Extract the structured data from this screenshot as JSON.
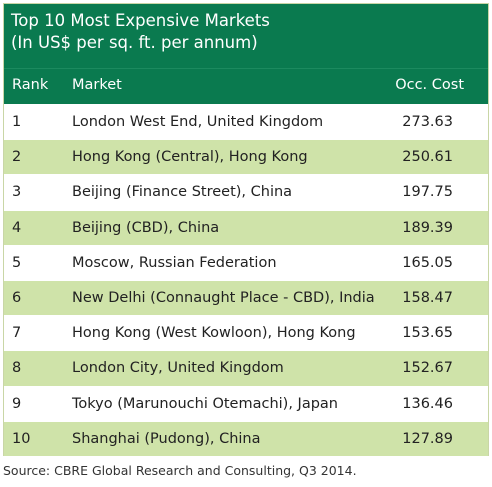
{
  "chart_data": {
    "type": "table",
    "title": "Top 10 Most Expensive Markets",
    "subtitle": "(In US$ per sq. ft. per annum)",
    "columns": [
      "Rank",
      "Market",
      "Occ. Cost"
    ],
    "rows": [
      {
        "rank": "1",
        "market": "London West End, United Kingdom",
        "cost": "273.63"
      },
      {
        "rank": "2",
        "market": "Hong Kong (Central), Hong Kong",
        "cost": "250.61"
      },
      {
        "rank": "3",
        "market": "Beijing (Finance Street), China",
        "cost": "197.75"
      },
      {
        "rank": "4",
        "market": "Beijing (CBD), China",
        "cost": "189.39"
      },
      {
        "rank": "5",
        "market": "Moscow, Russian Federation",
        "cost": "165.05"
      },
      {
        "rank": "6",
        "market": "New Delhi (Connaught Place - CBD), India",
        "cost": "158.47"
      },
      {
        "rank": "7",
        "market": "Hong Kong (West Kowloon), Hong Kong",
        "cost": "153.65"
      },
      {
        "rank": "8",
        "market": "London City, United Kingdom",
        "cost": "152.67"
      },
      {
        "rank": "9",
        "market": "Tokyo (Marunouchi Otemachi), Japan",
        "cost": "136.46"
      },
      {
        "rank": "10",
        "market": "Shanghai (Pudong), China",
        "cost": "127.89"
      }
    ],
    "source": "Source: CBRE Global Research and Consulting, Q3 2014."
  },
  "colors": {
    "header_bg": "#0a7a4f",
    "header_text": "#ffffff",
    "stripe": "#cfe3a9",
    "row_bg": "#ffffff",
    "text": "#222222"
  }
}
